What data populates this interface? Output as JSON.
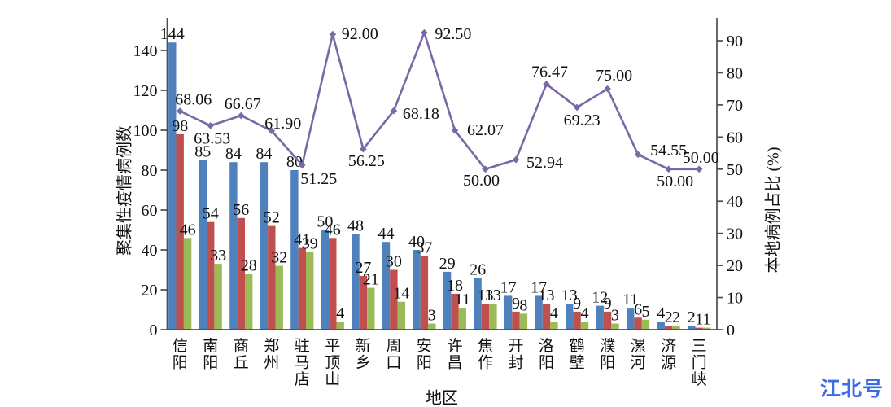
{
  "watermark": {
    "text": "江北号",
    "color": "#3D6BE8"
  },
  "chart_data": {
    "type": "bar",
    "subtype": "grouped-bars-with-percent-line",
    "categories": [
      "信阳",
      "南阳",
      "商丘",
      "郑州",
      "驻马店",
      "平顶山",
      "新乡",
      "周口",
      "安阳",
      "许昌",
      "焦作",
      "开封",
      "洛阳",
      "鹤壁",
      "濮阳",
      "漯河",
      "济源",
      "三门峡"
    ],
    "series": [
      {
        "name": "bar-series-blue",
        "type": "bar",
        "axis": "left",
        "color": "#4F81BD",
        "values": [
          144,
          85,
          84,
          84,
          80,
          50,
          48,
          44,
          40,
          29,
          26,
          17,
          17,
          13,
          12,
          11,
          4,
          2
        ]
      },
      {
        "name": "bar-series-red",
        "type": "bar",
        "axis": "left",
        "color": "#C0504D",
        "values": [
          98,
          54,
          56,
          52,
          41,
          46,
          27,
          30,
          37,
          18,
          13,
          9,
          13,
          9,
          9,
          6,
          2,
          1
        ]
      },
      {
        "name": "bar-series-green",
        "type": "bar",
        "axis": "left",
        "color": "#9BBB59",
        "values": [
          46,
          33,
          28,
          32,
          39,
          4,
          21,
          14,
          3,
          11,
          13,
          8,
          4,
          4,
          3,
          5,
          2,
          1
        ]
      },
      {
        "name": "line-series-purple",
        "type": "line",
        "axis": "right",
        "color": "#7B68A6",
        "values": [
          68.06,
          63.53,
          66.67,
          61.9,
          51.25,
          92,
          56.25,
          68.18,
          92.5,
          62.07,
          50,
          52.94,
          76.47,
          69.23,
          75,
          54.55,
          50,
          50
        ],
        "labels": [
          "68.06",
          "63.53",
          "66.67",
          "61.90",
          "51.25",
          "92.00",
          "56.25",
          "68.18",
          "92.50",
          "62.07",
          "50.00",
          "52.94",
          "76.47",
          "69.23",
          "75.00",
          "54.55",
          "50.00",
          "50.00"
        ]
      }
    ],
    "left_axis": {
      "label": "聚集性疫情病例数",
      "ticks": [
        0,
        20,
        40,
        60,
        80,
        100,
        120,
        140
      ],
      "range": [
        0,
        156
      ]
    },
    "right_axis": {
      "label": "本地病例占比 (%)",
      "ticks": [
        0,
        10,
        20,
        30,
        40,
        50,
        60,
        70,
        80,
        90
      ],
      "range": [
        0,
        97
      ]
    },
    "xlabel": "地区",
    "grid": false,
    "legend": "none",
    "bar_labels_visible": true,
    "line_labels_visible": true
  }
}
